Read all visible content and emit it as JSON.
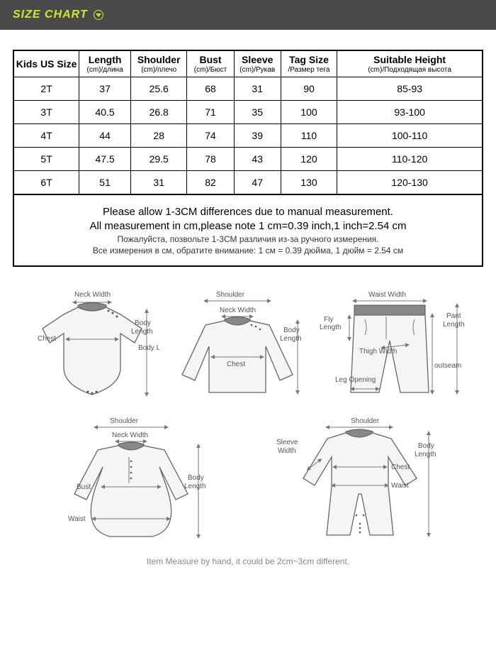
{
  "header": {
    "title": "SIZE CHART"
  },
  "table": {
    "columns": [
      {
        "main": "Kids US Size",
        "sub": ""
      },
      {
        "main": "Length",
        "sub": "(cm)/длина"
      },
      {
        "main": "Shoulder",
        "sub": "(cm)/плечо"
      },
      {
        "main": "Bust",
        "sub": "(cm)/Бюст"
      },
      {
        "main": "Sleeve",
        "sub": "(cm)/Рукав"
      },
      {
        "main": "Tag Size",
        "sub": "/Размер тега"
      },
      {
        "main": "Suitable Height",
        "sub": "(cm)/Подходящая высота"
      }
    ],
    "rows": [
      [
        "2T",
        "37",
        "25.6",
        "68",
        "31",
        "90",
        "85-93"
      ],
      [
        "3T",
        "40.5",
        "26.8",
        "71",
        "35",
        "100",
        "93-100"
      ],
      [
        "4T",
        "44",
        "28",
        "74",
        "39",
        "110",
        "100-110"
      ],
      [
        "5T",
        "47.5",
        "29.5",
        "78",
        "43",
        "120",
        "110-120"
      ],
      [
        "6T",
        "51",
        "31",
        "82",
        "47",
        "130",
        "120-130"
      ]
    ],
    "col_widths": [
      "14%",
      "11%",
      "12%",
      "10%",
      "10%",
      "12%",
      "31%"
    ]
  },
  "notes": {
    "en1": "Please allow 1-3CM differences due to manual measurement.",
    "en2": "All measurement in cm,please note 1 cm=0.39 inch,1 inch=2.54 cm",
    "ru1": "Пожалуйста, позвольте 1-3СМ различия из-за ручного измерения.",
    "ru2": "Все измерения в см, обратите внимание: 1 см = 0.39 дюйма, 1 дюйм = 2.54 см"
  },
  "diagram_labels": {
    "neck_width": "Neck Width",
    "chest": "Chest",
    "body_length": "Body Length",
    "shoulder": "Shoulder",
    "waist_width": "Waist Width",
    "fly_length": "Fly Length",
    "thigh_width": "Thigh Width",
    "leg_opening": "Leg Opening",
    "pant_length": "Pant Length",
    "outseam": "outseam",
    "bust": "Bust",
    "waist": "Waist",
    "sleeve_width": "Sleeve Width"
  },
  "footer": "Item Measure by hand, it could be 2cm~3cm different.",
  "colors": {
    "header_bg": "#4a4a4a",
    "header_text": "#d4e629",
    "border": "#000000",
    "garment_fill": "#f5f5f5",
    "garment_stroke": "#666666",
    "label": "#555555"
  }
}
